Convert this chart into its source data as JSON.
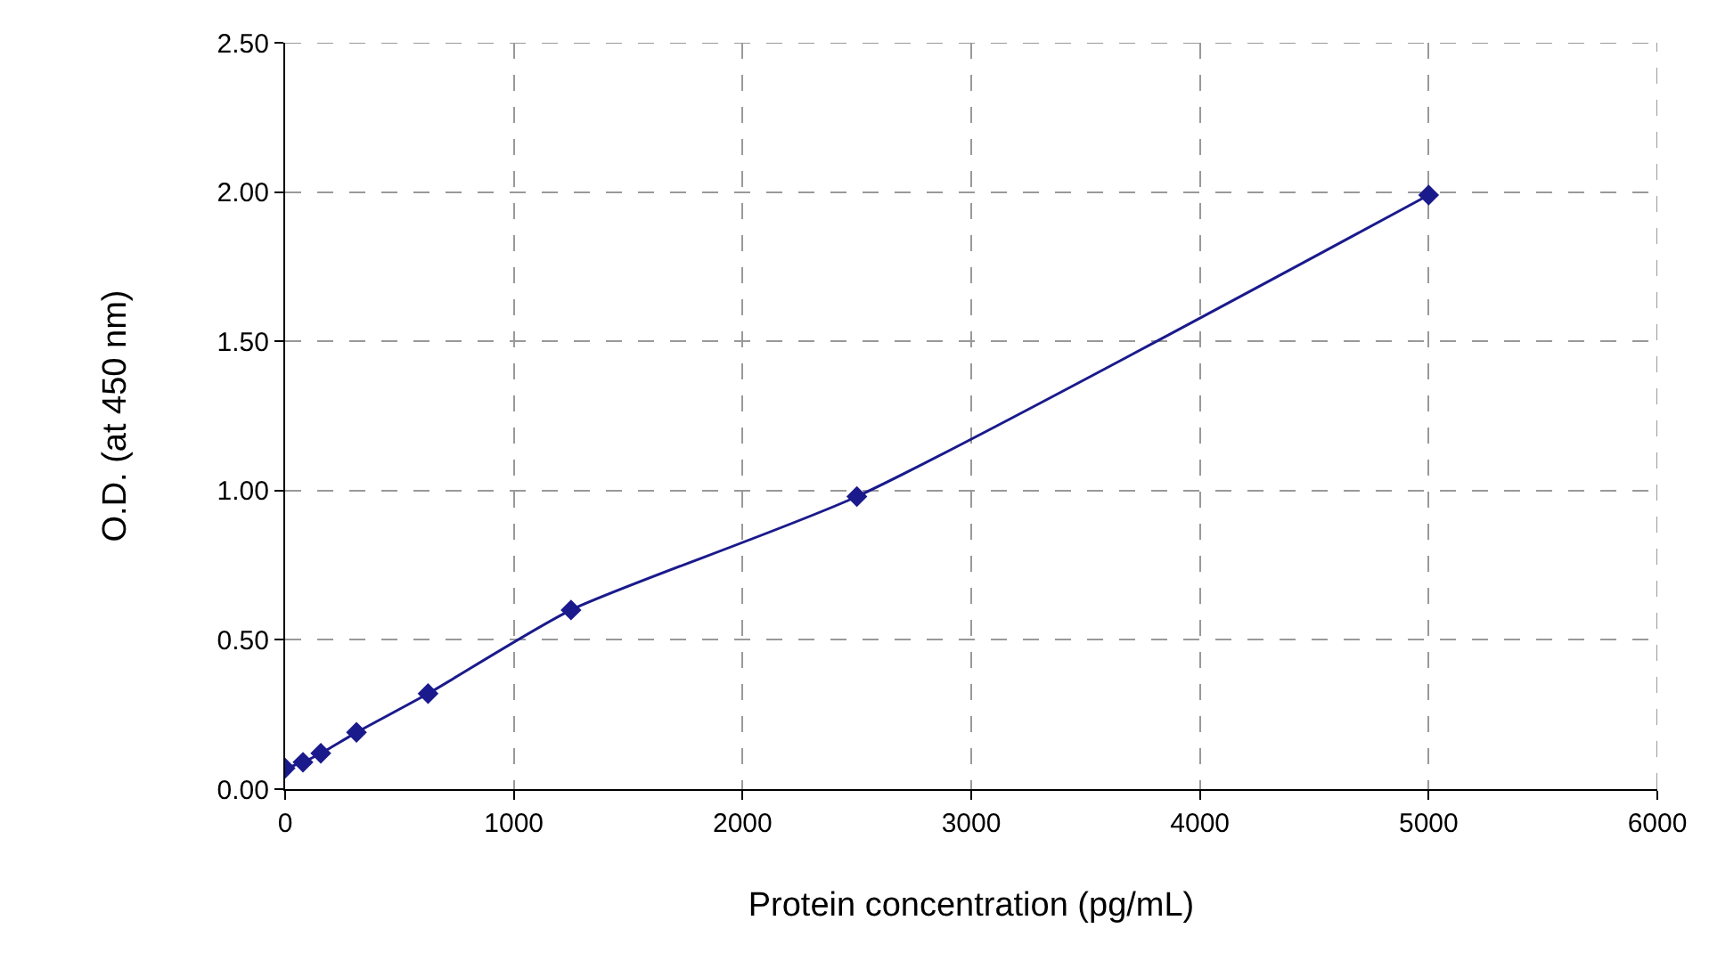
{
  "chart_data": {
    "type": "line",
    "xlabel": "Protein concentration (pg/mL)",
    "ylabel": "O.D. (at 450 nm)",
    "x": [
      0,
      78,
      156,
      312,
      625,
      1250,
      2500,
      5000
    ],
    "series": [
      {
        "color": "#1a1a8c",
        "values": [
          0.07,
          0.09,
          0.12,
          0.19,
          0.32,
          0.6,
          0.98,
          1.99
        ]
      }
    ],
    "xlim": [
      0,
      6000
    ],
    "xticks": [
      0,
      1000,
      2000,
      3000,
      4000,
      5000,
      6000
    ],
    "ylim": [
      0,
      2.5
    ],
    "yticks": [
      {
        "value": 0,
        "label": "0.00"
      },
      {
        "value": 0.5,
        "label": "0.50"
      },
      {
        "value": 1,
        "label": "1.00"
      },
      {
        "value": 1.5,
        "label": "1.50"
      },
      {
        "value": 2,
        "label": "2.00"
      },
      {
        "value": 2.5,
        "label": "2.50"
      }
    ],
    "grid": true,
    "marker": "diamond",
    "line_style": "solid"
  }
}
